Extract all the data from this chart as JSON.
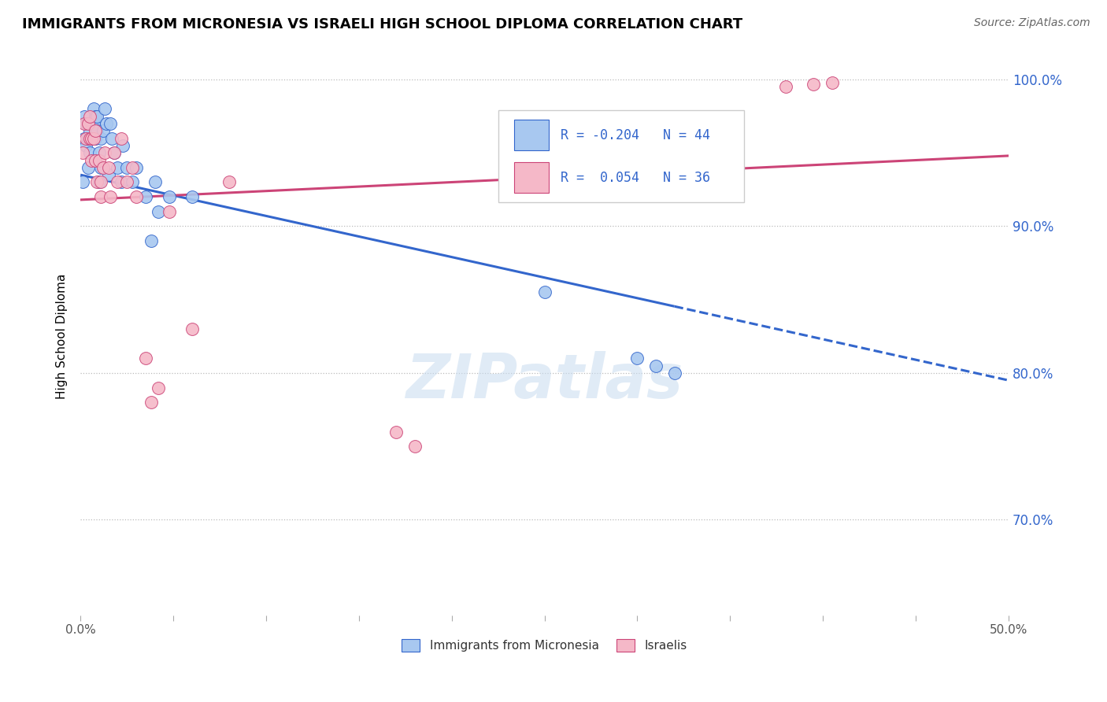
{
  "title": "IMMIGRANTS FROM MICRONESIA VS ISRAELI HIGH SCHOOL DIPLOMA CORRELATION CHART",
  "source": "Source: ZipAtlas.com",
  "ylabel": "High School Diploma",
  "xlim": [
    0.0,
    0.5
  ],
  "ylim": [
    0.635,
    1.015
  ],
  "ytick_positions": [
    0.7,
    0.8,
    0.9,
    1.0
  ],
  "ytick_labels": [
    "70.0%",
    "80.0%",
    "90.0%",
    "100.0%"
  ],
  "r_blue": -0.204,
  "n_blue": 44,
  "r_pink": 0.054,
  "n_pink": 36,
  "blue_color": "#A8C8F0",
  "pink_color": "#F5B8C8",
  "trendline_blue": "#3366CC",
  "trendline_pink": "#CC4477",
  "legend_color": "#3366CC",
  "watermark": "ZIPatlas",
  "trendline_blue_x0": 0.0,
  "trendline_blue_y0": 0.935,
  "trendline_blue_x1": 0.5,
  "trendline_blue_y1": 0.795,
  "trendline_blue_solid_end": 0.32,
  "trendline_pink_x0": 0.0,
  "trendline_pink_y0": 0.918,
  "trendline_pink_x1": 0.5,
  "trendline_pink_y1": 0.948,
  "blue_points_x": [
    0.001,
    0.002,
    0.002,
    0.003,
    0.003,
    0.004,
    0.004,
    0.005,
    0.005,
    0.006,
    0.006,
    0.007,
    0.007,
    0.008,
    0.008,
    0.009,
    0.009,
    0.01,
    0.01,
    0.011,
    0.011,
    0.012,
    0.013,
    0.014,
    0.015,
    0.016,
    0.017,
    0.018,
    0.02,
    0.022,
    0.023,
    0.025,
    0.028,
    0.03,
    0.035,
    0.038,
    0.04,
    0.042,
    0.048,
    0.06,
    0.25,
    0.3,
    0.31,
    0.32
  ],
  "blue_points_y": [
    0.93,
    0.96,
    0.975,
    0.955,
    0.97,
    0.94,
    0.96,
    0.965,
    0.95,
    0.97,
    0.96,
    0.98,
    0.97,
    0.975,
    0.96,
    0.965,
    0.975,
    0.93,
    0.95,
    0.96,
    0.94,
    0.965,
    0.98,
    0.97,
    0.935,
    0.97,
    0.96,
    0.95,
    0.94,
    0.93,
    0.955,
    0.94,
    0.93,
    0.94,
    0.92,
    0.89,
    0.93,
    0.91,
    0.92,
    0.92,
    0.855,
    0.81,
    0.805,
    0.8
  ],
  "pink_points_x": [
    0.001,
    0.002,
    0.003,
    0.004,
    0.005,
    0.005,
    0.006,
    0.006,
    0.007,
    0.008,
    0.008,
    0.009,
    0.01,
    0.011,
    0.011,
    0.012,
    0.013,
    0.015,
    0.016,
    0.018,
    0.02,
    0.022,
    0.025,
    0.028,
    0.03,
    0.035,
    0.038,
    0.042,
    0.048,
    0.06,
    0.08,
    0.17,
    0.18,
    0.38,
    0.395,
    0.405
  ],
  "pink_points_y": [
    0.95,
    0.97,
    0.96,
    0.97,
    0.975,
    0.96,
    0.96,
    0.945,
    0.96,
    0.965,
    0.945,
    0.93,
    0.945,
    0.92,
    0.93,
    0.94,
    0.95,
    0.94,
    0.92,
    0.95,
    0.93,
    0.96,
    0.93,
    0.94,
    0.92,
    0.81,
    0.78,
    0.79,
    0.91,
    0.83,
    0.93,
    0.76,
    0.75,
    0.995,
    0.997,
    0.998
  ]
}
